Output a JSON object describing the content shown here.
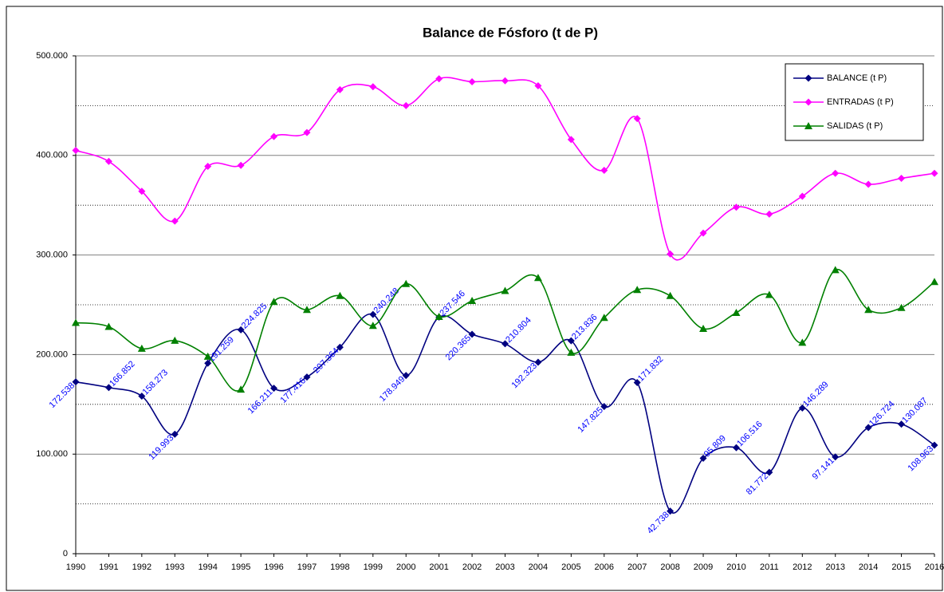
{
  "chart_data": {
    "type": "line",
    "title": "Balance de Fósforo (t de P)",
    "categories": [
      "1990",
      "1991",
      "1992",
      "1993",
      "1994",
      "1995",
      "1996",
      "1997",
      "1998",
      "1999",
      "2000",
      "2001",
      "2002",
      "2003",
      "2004",
      "2005",
      "2006",
      "2007",
      "2008",
      "2009",
      "2010",
      "2011",
      "2012",
      "2013",
      "2014",
      "2015",
      "2016"
    ],
    "smooth": true,
    "grid": true,
    "minor_grid": [
      50000,
      150000,
      250000,
      350000,
      450000
    ],
    "legend": "top-right",
    "ylim": [
      0,
      500000
    ],
    "yticks": [
      0,
      {
        "value": 100000,
        "label": "100.000"
      },
      {
        "value": 200000,
        "label": "200.000"
      },
      {
        "value": 300000,
        "label": "300.000"
      },
      {
        "value": 400000,
        "label": "400.000"
      },
      {
        "value": 500000,
        "label": "500.000"
      }
    ],
    "series": [
      {
        "name": "BALANCE (t P)",
        "color": "#000080",
        "marker": "diamond",
        "label_color": "#0000ff",
        "values": [
          172538,
          166852,
          158273,
          119993,
          191259,
          224825,
          166211,
          177416,
          207364,
          240248,
          178949,
          237546,
          220365,
          210804,
          192323,
          213836,
          147825,
          171832,
          42738,
          95809,
          106516,
          81772,
          146289,
          97141,
          126724,
          130087,
          108963
        ],
        "value_labels": [
          "172.538",
          "166.852",
          "158.273",
          "119.993",
          "191.259",
          "224.825",
          "166.211",
          "177.416",
          "207.364",
          "240.248",
          "178.949",
          "237.546",
          "220.365",
          "210.804",
          "192.323",
          "213.836",
          "147.825",
          "171.832",
          "42.738",
          "95.809",
          "106.516",
          "81.772",
          "146.289",
          "97.141",
          "126.724",
          "130.087",
          "108.963"
        ]
      },
      {
        "name": "ENTRADAS (t P)",
        "color": "#ff00ff",
        "marker": "diamond",
        "values": [
          405000,
          394000,
          364000,
          334000,
          389000,
          390000,
          419000,
          423000,
          466000,
          469000,
          450000,
          477000,
          474000,
          475000,
          470000,
          416000,
          385000,
          437000,
          301000,
          322000,
          348000,
          341000,
          359000,
          382000,
          371000,
          377000,
          382000
        ]
      },
      {
        "name": "SALIDAS (t P)",
        "color": "#008000",
        "marker": "triangle",
        "values": [
          232000,
          228000,
          206000,
          214000,
          198000,
          165000,
          253000,
          245000,
          259000,
          229000,
          271000,
          238000,
          254000,
          264000,
          277000,
          202000,
          237000,
          265000,
          259000,
          226000,
          242000,
          260000,
          212000,
          285000,
          245000,
          247000,
          273000
        ]
      }
    ]
  }
}
